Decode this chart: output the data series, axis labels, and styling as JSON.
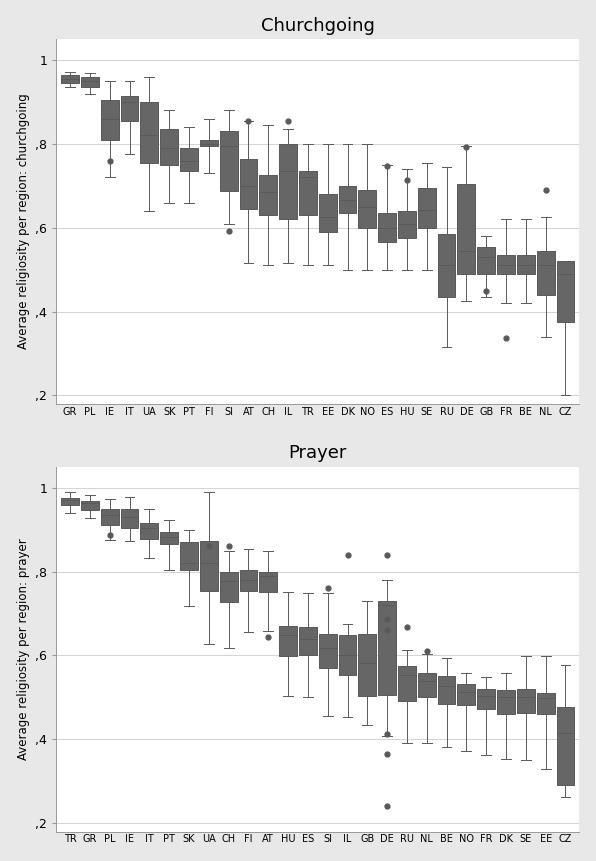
{
  "churchgoing": {
    "title": "Churchgoing",
    "ylabel": "Average religiosity per region: churchgoing",
    "countries": [
      "GR",
      "PL",
      "IE",
      "IT",
      "UA",
      "SK",
      "PT",
      "FI",
      "SI",
      "AT",
      "CH",
      "IL",
      "TR",
      "EE",
      "DK",
      "NO",
      "ES",
      "HU",
      "SE",
      "RU",
      "DE",
      "GB",
      "FR",
      "BE",
      "NL",
      "CZ"
    ],
    "boxes": [
      {
        "med": 0.955,
        "q1": 0.945,
        "q3": 0.963,
        "whislo": 0.935,
        "whishi": 0.972,
        "fliers": []
      },
      {
        "med": 0.95,
        "q1": 0.935,
        "q3": 0.96,
        "whislo": 0.92,
        "whishi": 0.97,
        "fliers": []
      },
      {
        "med": 0.86,
        "q1": 0.81,
        "q3": 0.905,
        "whislo": 0.72,
        "whishi": 0.95,
        "fliers": [
          0.76
        ]
      },
      {
        "med": 0.9,
        "q1": 0.855,
        "q3": 0.915,
        "whislo": 0.775,
        "whishi": 0.95,
        "fliers": []
      },
      {
        "med": 0.82,
        "q1": 0.755,
        "q3": 0.9,
        "whislo": 0.64,
        "whishi": 0.96,
        "fliers": []
      },
      {
        "med": 0.79,
        "q1": 0.75,
        "q3": 0.835,
        "whislo": 0.66,
        "whishi": 0.88,
        "fliers": []
      },
      {
        "med": 0.76,
        "q1": 0.735,
        "q3": 0.79,
        "whislo": 0.66,
        "whishi": 0.84,
        "fliers": []
      },
      {
        "med": 0.8,
        "q1": 0.795,
        "q3": 0.808,
        "whislo": 0.73,
        "whishi": 0.86,
        "fliers": []
      },
      {
        "med": 0.795,
        "q1": 0.688,
        "q3": 0.83,
        "whislo": 0.61,
        "whishi": 0.88,
        "fliers": [
          0.592
        ]
      },
      {
        "med": 0.7,
        "q1": 0.645,
        "q3": 0.765,
        "whislo": 0.515,
        "whishi": 0.855,
        "fliers": [
          0.855
        ]
      },
      {
        "med": 0.685,
        "q1": 0.63,
        "q3": 0.725,
        "whislo": 0.51,
        "whishi": 0.845,
        "fliers": []
      },
      {
        "med": 0.735,
        "q1": 0.62,
        "q3": 0.8,
        "whislo": 0.515,
        "whishi": 0.835,
        "fliers": [
          0.855
        ]
      },
      {
        "med": 0.72,
        "q1": 0.63,
        "q3": 0.735,
        "whislo": 0.51,
        "whishi": 0.8,
        "fliers": []
      },
      {
        "med": 0.625,
        "q1": 0.59,
        "q3": 0.68,
        "whislo": 0.51,
        "whishi": 0.8,
        "fliers": []
      },
      {
        "med": 0.665,
        "q1": 0.635,
        "q3": 0.7,
        "whislo": 0.5,
        "whishi": 0.8,
        "fliers": []
      },
      {
        "med": 0.65,
        "q1": 0.6,
        "q3": 0.69,
        "whislo": 0.5,
        "whishi": 0.8,
        "fliers": []
      },
      {
        "med": 0.6,
        "q1": 0.565,
        "q3": 0.635,
        "whislo": 0.5,
        "whishi": 0.75,
        "fliers": [
          0.748
        ]
      },
      {
        "med": 0.61,
        "q1": 0.575,
        "q3": 0.64,
        "whislo": 0.5,
        "whishi": 0.74,
        "fliers": [
          0.714
        ]
      },
      {
        "med": 0.643,
        "q1": 0.6,
        "q3": 0.695,
        "whislo": 0.5,
        "whishi": 0.755,
        "fliers": []
      },
      {
        "med": 0.51,
        "q1": 0.435,
        "q3": 0.585,
        "whislo": 0.315,
        "whishi": 0.745,
        "fliers": []
      },
      {
        "med": 0.545,
        "q1": 0.49,
        "q3": 0.705,
        "whislo": 0.425,
        "whishi": 0.795,
        "fliers": [
          0.793
        ]
      },
      {
        "med": 0.53,
        "q1": 0.49,
        "q3": 0.553,
        "whislo": 0.435,
        "whishi": 0.58,
        "fliers": [
          0.45
        ]
      },
      {
        "med": 0.51,
        "q1": 0.49,
        "q3": 0.535,
        "whislo": 0.42,
        "whishi": 0.62,
        "fliers": [
          0.338
        ]
      },
      {
        "med": 0.51,
        "q1": 0.49,
        "q3": 0.535,
        "whislo": 0.42,
        "whishi": 0.62,
        "fliers": []
      },
      {
        "med": 0.51,
        "q1": 0.44,
        "q3": 0.545,
        "whislo": 0.34,
        "whishi": 0.625,
        "fliers": [
          0.69
        ]
      },
      {
        "med": 0.49,
        "q1": 0.375,
        "q3": 0.52,
        "whislo": 0.2,
        "whishi": 0.52,
        "fliers": []
      }
    ]
  },
  "prayer": {
    "title": "Prayer",
    "ylabel": "Average religiosity per region: prayer",
    "countries": [
      "TR",
      "GR",
      "PL",
      "IE",
      "IT",
      "PT",
      "SK",
      "UA",
      "CH",
      "FI",
      "AT",
      "HU",
      "ES",
      "SI",
      "IL",
      "GB",
      "DE",
      "RU",
      "NL",
      "BE",
      "NO",
      "FR",
      "DK",
      "SE",
      "EE",
      "CZ"
    ],
    "boxes": [
      {
        "med": 0.97,
        "q1": 0.958,
        "q3": 0.976,
        "whislo": 0.94,
        "whishi": 0.99,
        "fliers": []
      },
      {
        "med": 0.963,
        "q1": 0.947,
        "q3": 0.968,
        "whislo": 0.927,
        "whishi": 0.982,
        "fliers": []
      },
      {
        "med": 0.935,
        "q1": 0.912,
        "q3": 0.948,
        "whislo": 0.876,
        "whishi": 0.972,
        "fliers": [
          0.886
        ]
      },
      {
        "med": 0.93,
        "q1": 0.905,
        "q3": 0.95,
        "whislo": 0.872,
        "whishi": 0.978,
        "fliers": []
      },
      {
        "med": 0.903,
        "q1": 0.878,
        "q3": 0.916,
        "whislo": 0.832,
        "whishi": 0.95,
        "fliers": []
      },
      {
        "med": 0.882,
        "q1": 0.866,
        "q3": 0.895,
        "whislo": 0.803,
        "whishi": 0.923,
        "fliers": []
      },
      {
        "med": 0.82,
        "q1": 0.803,
        "q3": 0.87,
        "whislo": 0.718,
        "whishi": 0.898,
        "fliers": []
      },
      {
        "med": 0.82,
        "q1": 0.753,
        "q3": 0.872,
        "whislo": 0.628,
        "whishi": 0.99,
        "fliers": [
          0.862
        ]
      },
      {
        "med": 0.778,
        "q1": 0.727,
        "q3": 0.8,
        "whislo": 0.618,
        "whishi": 0.848,
        "fliers": [
          0.862
        ]
      },
      {
        "med": 0.78,
        "q1": 0.754,
        "q3": 0.804,
        "whislo": 0.655,
        "whishi": 0.853,
        "fliers": []
      },
      {
        "med": 0.79,
        "q1": 0.752,
        "q3": 0.8,
        "whislo": 0.658,
        "whishi": 0.848,
        "fliers": [
          0.643
        ]
      },
      {
        "med": 0.648,
        "q1": 0.598,
        "q3": 0.67,
        "whislo": 0.503,
        "whishi": 0.752,
        "fliers": []
      },
      {
        "med": 0.638,
        "q1": 0.602,
        "q3": 0.667,
        "whislo": 0.5,
        "whishi": 0.748,
        "fliers": []
      },
      {
        "med": 0.618,
        "q1": 0.57,
        "q3": 0.65,
        "whislo": 0.455,
        "whishi": 0.748,
        "fliers": [
          0.76
        ]
      },
      {
        "med": 0.6,
        "q1": 0.553,
        "q3": 0.648,
        "whislo": 0.452,
        "whishi": 0.676,
        "fliers": [
          0.84
        ]
      },
      {
        "med": 0.582,
        "q1": 0.503,
        "q3": 0.65,
        "whislo": 0.433,
        "whishi": 0.73,
        "fliers": []
      },
      {
        "med": 0.72,
        "q1": 0.505,
        "q3": 0.73,
        "whislo": 0.408,
        "whishi": 0.78,
        "fliers": [
          0.84,
          0.688,
          0.66,
          0.413,
          0.365,
          0.24
        ]
      },
      {
        "med": 0.553,
        "q1": 0.492,
        "q3": 0.575,
        "whislo": 0.39,
        "whishi": 0.612,
        "fliers": [
          0.668
        ]
      },
      {
        "med": 0.54,
        "q1": 0.502,
        "q3": 0.558,
        "whislo": 0.392,
        "whishi": 0.603,
        "fliers": [
          0.61
        ]
      },
      {
        "med": 0.528,
        "q1": 0.484,
        "q3": 0.55,
        "whislo": 0.382,
        "whishi": 0.593,
        "fliers": []
      },
      {
        "med": 0.512,
        "q1": 0.481,
        "q3": 0.531,
        "whislo": 0.372,
        "whishi": 0.558,
        "fliers": []
      },
      {
        "med": 0.503,
        "q1": 0.472,
        "q3": 0.52,
        "whislo": 0.362,
        "whishi": 0.548,
        "fliers": []
      },
      {
        "med": 0.502,
        "q1": 0.46,
        "q3": 0.518,
        "whislo": 0.352,
        "whishi": 0.558,
        "fliers": []
      },
      {
        "med": 0.5,
        "q1": 0.462,
        "q3": 0.52,
        "whislo": 0.35,
        "whishi": 0.598,
        "fliers": []
      },
      {
        "med": 0.498,
        "q1": 0.46,
        "q3": 0.51,
        "whislo": 0.33,
        "whishi": 0.598,
        "fliers": []
      },
      {
        "med": 0.415,
        "q1": 0.292,
        "q3": 0.478,
        "whislo": 0.262,
        "whishi": 0.578,
        "fliers": []
      }
    ]
  },
  "box_color": "#595959",
  "box_facecolor": "#666666",
  "flier_color": "#595959",
  "plot_bg": "#ffffff",
  "fig_bg": "#e8e8e8",
  "ylim": [
    0.18,
    1.05
  ],
  "yticks": [
    0.2,
    0.4,
    0.6,
    0.8,
    1.0
  ],
  "yticklabels": [
    ",2",
    ",4",
    ",6",
    ",8",
    "1"
  ],
  "box_width": 0.45
}
